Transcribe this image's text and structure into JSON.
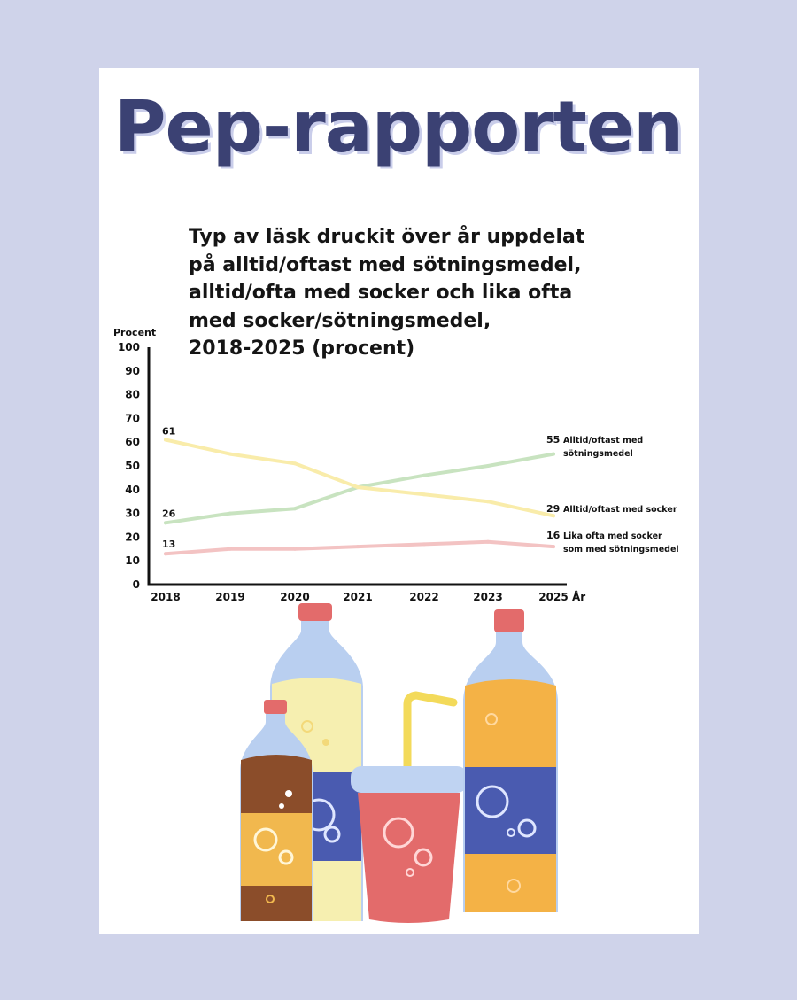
{
  "page": {
    "title": "Pep-rapporten"
  },
  "colors": {
    "background": "#cfd3ea",
    "title": "#3b4173",
    "sweetener": "#c8e3c0",
    "sugar": "#f9ecaa",
    "equal": "#f3c3c3"
  },
  "chart_data": {
    "type": "line",
    "title": "Typ av läsk druckit över år uppdelat\npå alltid/oftast med sötningsmedel,\nalltid/ofta med socker och lika ofta\nmed socker/sötningsmedel,\n2018-2025 (procent)",
    "ylabel": "Procent",
    "xlabel": "År",
    "x": [
      2018,
      2019,
      2020,
      2021,
      2022,
      2023,
      2025
    ],
    "ylim": [
      0,
      100
    ],
    "yticks": [
      0,
      10,
      20,
      30,
      40,
      50,
      60,
      70,
      80,
      90,
      100
    ],
    "grid": false,
    "series": [
      {
        "name": "Alltid/oftast med sötningsmedel",
        "label_lines": [
          "Alltid/oftast med",
          "sötningsmedel"
        ],
        "values": [
          26,
          30,
          32,
          41,
          46,
          50,
          55
        ],
        "start_label": "26",
        "end_label": "55",
        "color": "#c8e3c0"
      },
      {
        "name": "Alltid/oftast med socker",
        "label_lines": [
          "Alltid/oftast med socker"
        ],
        "values": [
          61,
          55,
          51,
          41,
          38,
          35,
          29
        ],
        "start_label": "61",
        "end_label": "29",
        "color": "#f9ecaa"
      },
      {
        "name": "Lika ofta med socker som med sötningsmedel",
        "label_lines": [
          "Lika ofta med socker",
          "som med sötningsmedel"
        ],
        "values": [
          13,
          15,
          15,
          16,
          17,
          18,
          16
        ],
        "start_label": "13",
        "end_label": "16",
        "color": "#f3c3c3"
      }
    ]
  }
}
